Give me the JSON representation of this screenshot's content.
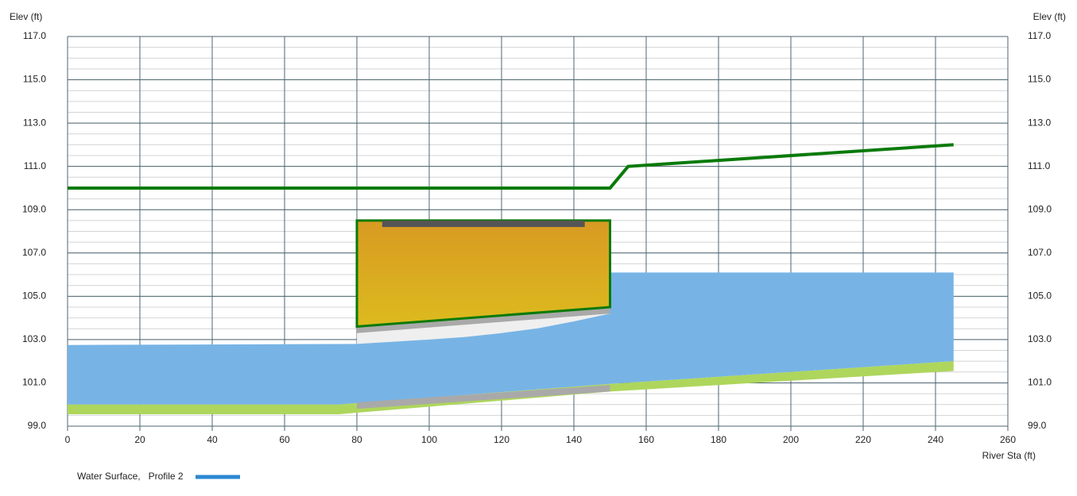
{
  "chart_data": {
    "type": "profile",
    "y_label": "Elev (ft)",
    "y2_label": "Elev (ft)",
    "x_label": "River Sta (ft)",
    "xlim": [
      0,
      260
    ],
    "ylim": [
      99,
      117
    ],
    "xticks": [
      0,
      20,
      40,
      60,
      80,
      100,
      120,
      140,
      160,
      180,
      200,
      220,
      240,
      260
    ],
    "yticks": [
      {
        "value": 99,
        "label": "99.0"
      },
      {
        "value": 101,
        "label": "101.0"
      },
      {
        "value": 103,
        "label": "103.0"
      },
      {
        "value": 105,
        "label": "105.0"
      },
      {
        "value": 107,
        "label": "107.0"
      },
      {
        "value": 109,
        "label": "109.0"
      },
      {
        "value": 111,
        "label": "111.0"
      },
      {
        "value": 113,
        "label": "113.0"
      },
      {
        "value": 115,
        "label": "115.0"
      },
      {
        "value": 117,
        "label": "117.0"
      }
    ],
    "grid": true,
    "minor_grid_step": 0.5,
    "series": [
      {
        "name": "Water Surface,   Profile 2",
        "color": "#2b88d2",
        "fill": "#77b4e5",
        "x": [
          0,
          80,
          90,
          100,
          110,
          120,
          130,
          140,
          150,
          150,
          245
        ],
        "values": [
          102.75,
          102.8,
          102.9,
          103.0,
          103.12,
          103.3,
          103.52,
          103.84,
          104.2,
          106.1,
          106.1
        ]
      }
    ],
    "ground": {
      "color": "#aed65c",
      "x": [
        0,
        75,
        150,
        245
      ],
      "top": [
        100.0,
        100.0,
        100.95,
        102.0
      ],
      "bottom": [
        99.55,
        99.55,
        100.6,
        101.55
      ]
    },
    "culvert": {
      "x": [
        80,
        150
      ],
      "top": 108.5,
      "crown_top": [
        103.6,
        104.5
      ],
      "crown_bottom": [
        103.3,
        104.2
      ],
      "invert_top": [
        100.1,
        100.9
      ],
      "invert_bottom": [
        99.8,
        100.6
      ],
      "color": "#d9a522",
      "outline": "#0a7a0a",
      "barrel_color": "#a9a9a9"
    },
    "deck": {
      "x": [
        87,
        143
      ],
      "top": 108.5,
      "bottom": 108.2,
      "color": "#555555"
    },
    "energy_line": {
      "color": "#0a7a0a",
      "x": [
        0,
        150,
        155,
        245
      ],
      "values": [
        110,
        110,
        111,
        112
      ]
    }
  }
}
